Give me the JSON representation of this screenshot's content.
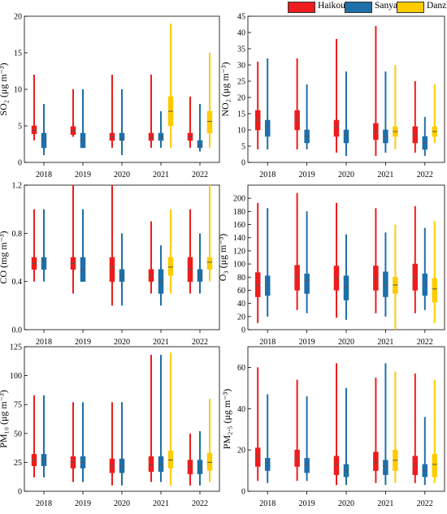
{
  "legend": {
    "items": [
      {
        "label": "Haikou",
        "color": "#ee1c1c"
      },
      {
        "label": "Sanya",
        "color": "#1f6fa8"
      },
      {
        "label": "Danzhou",
        "color": "#ffcc00"
      }
    ]
  },
  "chart_data": [
    {
      "type": "box",
      "ylabel": "SO₂ (μg m⁻³)",
      "ylim": [
        0,
        20
      ],
      "yticks": [
        0,
        5,
        10,
        15,
        20
      ],
      "categories": [
        "2018",
        "2019",
        "2020",
        "2021",
        "2022"
      ],
      "series": [
        {
          "name": "Haikou",
          "boxes": [
            {
              "min": 3,
              "q1": 3.9,
              "median": 4.4,
              "q3": 5,
              "max": 12
            },
            {
              "min": 3.5,
              "q1": 3.8,
              "median": 4.3,
              "q3": 4.9,
              "max": 10
            },
            {
              "min": 2,
              "q1": 3,
              "median": 3.5,
              "q3": 4,
              "max": 12
            },
            {
              "min": 2,
              "q1": 3,
              "median": 3.4,
              "q3": 4,
              "max": 12
            },
            {
              "min": 2,
              "q1": 3,
              "median": 3.5,
              "q3": 4,
              "max": 9
            }
          ]
        },
        {
          "name": "Sanya",
          "boxes": [
            {
              "min": 1,
              "q1": 2,
              "median": 3,
              "q3": 4,
              "max": 8
            },
            {
              "min": 2,
              "q1": 2,
              "median": 3,
              "q3": 4,
              "max": 10
            },
            {
              "min": 1,
              "q1": 3,
              "median": 3.2,
              "q3": 4,
              "max": 10
            },
            {
              "min": 2,
              "q1": 3,
              "median": 3.4,
              "q3": 4,
              "max": 7
            },
            {
              "min": 1.5,
              "q1": 2,
              "median": 2.4,
              "q3": 3,
              "max": 8
            }
          ]
        },
        {
          "name": "Danzhou",
          "boxes": [
            null,
            null,
            null,
            {
              "min": 2,
              "q1": 5,
              "median": 7,
              "q3": 9,
              "max": 19
            },
            {
              "min": 2,
              "q1": 4,
              "median": 5.6,
              "q3": 7,
              "max": 15
            }
          ]
        }
      ]
    },
    {
      "type": "box",
      "ylabel": "NO₂ (μg m⁻³)",
      "ylim": [
        0,
        45
      ],
      "yticks": [
        0,
        5,
        10,
        15,
        20,
        25,
        30,
        35,
        40,
        45
      ],
      "categories": [
        "2018",
        "2019",
        "2020",
        "2021",
        "2022"
      ],
      "series": [
        {
          "name": "Haikou",
          "boxes": [
            {
              "min": 4,
              "q1": 10,
              "median": 13,
              "q3": 16,
              "max": 31
            },
            {
              "min": 4,
              "q1": 10,
              "median": 13,
              "q3": 16,
              "max": 32
            },
            {
              "min": 3,
              "q1": 8,
              "median": 11,
              "q3": 13,
              "max": 38
            },
            {
              "min": 2,
              "q1": 7,
              "median": 9.5,
              "q3": 12,
              "max": 42
            },
            {
              "min": 3,
              "q1": 6,
              "median": 8.5,
              "q3": 11,
              "max": 25
            }
          ]
        },
        {
          "name": "Sanya",
          "boxes": [
            {
              "min": 4,
              "q1": 8,
              "median": 11,
              "q3": 13,
              "max": 32
            },
            {
              "min": 4,
              "q1": 6,
              "median": 8,
              "q3": 10,
              "max": 24
            },
            {
              "min": 2,
              "q1": 6,
              "median": 8.5,
              "q3": 10,
              "max": 28
            },
            {
              "min": 3,
              "q1": 6,
              "median": 8,
              "q3": 10,
              "max": 28
            },
            {
              "min": 2,
              "q1": 4,
              "median": 6,
              "q3": 8,
              "max": 14
            }
          ]
        },
        {
          "name": "Danzhou",
          "boxes": [
            null,
            null,
            null,
            {
              "min": 4,
              "q1": 8,
              "median": 9.5,
              "q3": 11,
              "max": 30
            },
            {
              "min": 6,
              "q1": 8,
              "median": 9.5,
              "q3": 11,
              "max": 24
            }
          ]
        }
      ]
    },
    {
      "type": "box",
      "ylabel": "CO (mg m⁻³)",
      "ylim": [
        0,
        1.2
      ],
      "yticks": [
        0.0,
        0.4,
        0.8,
        1.2
      ],
      "categories": [
        "2018",
        "2019",
        "2020",
        "2021",
        "2022"
      ],
      "series": [
        {
          "name": "Haikou",
          "boxes": [
            {
              "min": 0.4,
              "q1": 0.5,
              "median": 0.55,
              "q3": 0.6,
              "max": 1.0
            },
            {
              "min": 0.3,
              "q1": 0.5,
              "median": 0.55,
              "q3": 0.6,
              "max": 1.2
            },
            {
              "min": 0.2,
              "q1": 0.4,
              "median": 0.52,
              "q3": 0.6,
              "max": 1.2
            },
            {
              "min": 0.3,
              "q1": 0.4,
              "median": 0.45,
              "q3": 0.5,
              "max": 0.9
            },
            {
              "min": 0.3,
              "q1": 0.4,
              "median": 0.5,
              "q3": 0.6,
              "max": 1.0
            }
          ]
        },
        {
          "name": "Sanya",
          "boxes": [
            {
              "min": 0.4,
              "q1": 0.5,
              "median": 0.57,
              "q3": 0.6,
              "max": 1.0
            },
            {
              "min": 0.4,
              "q1": 0.4,
              "median": 0.5,
              "q3": 0.6,
              "max": 1.0
            },
            {
              "min": 0.2,
              "q1": 0.4,
              "median": 0.45,
              "q3": 0.5,
              "max": 0.8
            },
            {
              "min": 0.2,
              "q1": 0.3,
              "median": 0.4,
              "q3": 0.5,
              "max": 0.7
            },
            {
              "min": 0.3,
              "q1": 0.4,
              "median": 0.45,
              "q3": 0.5,
              "max": 0.8
            }
          ]
        },
        {
          "name": "Danzhou",
          "boxes": [
            null,
            null,
            null,
            {
              "min": 0.3,
              "q1": 0.45,
              "median": 0.52,
              "q3": 0.6,
              "max": 1.0
            },
            {
              "min": 0.4,
              "q1": 0.5,
              "median": 0.56,
              "q3": 0.6,
              "max": 1.2
            }
          ]
        }
      ]
    },
    {
      "type": "box",
      "ylabel": "O₃ (μg m⁻³)",
      "ylim": [
        0,
        220
      ],
      "yticks": [
        0,
        20,
        40,
        60,
        80,
        100,
        120,
        140,
        160,
        180,
        200
      ],
      "categories": [
        "2018",
        "2019",
        "2020",
        "2021",
        "2022"
      ],
      "series": [
        {
          "name": "Haikou",
          "boxes": [
            {
              "min": 10,
              "q1": 50,
              "median": 68,
              "q3": 87,
              "max": 193
            },
            {
              "min": 30,
              "q1": 60,
              "median": 80,
              "q3": 98,
              "max": 208
            },
            {
              "min": 18,
              "q1": 60,
              "median": 78,
              "q3": 97,
              "max": 193
            },
            {
              "min": 25,
              "q1": 60,
              "median": 78,
              "q3": 97,
              "max": 185
            },
            {
              "min": 25,
              "q1": 60,
              "median": 80,
              "q3": 100,
              "max": 188
            }
          ]
        },
        {
          "name": "Sanya",
          "boxes": [
            {
              "min": 20,
              "q1": 52,
              "median": 68,
              "q3": 82,
              "max": 185
            },
            {
              "min": 25,
              "q1": 55,
              "median": 75,
              "q3": 85,
              "max": 180
            },
            {
              "min": 15,
              "q1": 45,
              "median": 65,
              "q3": 82,
              "max": 145
            },
            {
              "min": 20,
              "q1": 50,
              "median": 68,
              "q3": 88,
              "max": 148
            },
            {
              "min": 30,
              "q1": 52,
              "median": 68,
              "q3": 85,
              "max": 155
            }
          ]
        },
        {
          "name": "Danzhou",
          "boxes": [
            null,
            null,
            null,
            {
              "min": 0,
              "q1": 55,
              "median": 68,
              "q3": 80,
              "max": 160
            },
            {
              "min": 10,
              "q1": 42,
              "median": 62,
              "q3": 78,
              "max": 165
            }
          ]
        }
      ]
    },
    {
      "type": "box",
      "ylabel": "PM₁₀ (μg m⁻³)",
      "ylim": [
        0,
        125
      ],
      "yticks": [
        0,
        25,
        50,
        75,
        100,
        125
      ],
      "categories": [
        "2018",
        "2019",
        "2020",
        "2021",
        "2022"
      ],
      "series": [
        {
          "name": "Haikou",
          "boxes": [
            {
              "min": 12,
              "q1": 22,
              "median": 27,
              "q3": 32,
              "max": 83
            },
            {
              "min": 8,
              "q1": 20,
              "median": 25,
              "q3": 30,
              "max": 77
            },
            {
              "min": 5,
              "q1": 16,
              "median": 22,
              "q3": 28,
              "max": 77
            },
            {
              "min": 8,
              "q1": 17,
              "median": 23,
              "q3": 30,
              "max": 118
            },
            {
              "min": 5,
              "q1": 15,
              "median": 21,
              "q3": 27,
              "max": 50
            }
          ]
        },
        {
          "name": "Sanya",
          "boxes": [
            {
              "min": 12,
              "q1": 22,
              "median": 27,
              "q3": 32,
              "max": 83
            },
            {
              "min": 8,
              "q1": 20,
              "median": 25,
              "q3": 30,
              "max": 77
            },
            {
              "min": 5,
              "q1": 16,
              "median": 22,
              "q3": 28,
              "max": 77
            },
            {
              "min": 8,
              "q1": 17,
              "median": 23,
              "q3": 30,
              "max": 118
            },
            {
              "min": 5,
              "q1": 15,
              "median": 21,
              "q3": 27,
              "max": 52
            }
          ]
        },
        {
          "name": "Danzhou",
          "boxes": [
            null,
            null,
            null,
            {
              "min": 5,
              "q1": 20,
              "median": 27,
              "q3": 35,
              "max": 120
            },
            {
              "min": 8,
              "q1": 18,
              "median": 25,
              "q3": 33,
              "max": 80
            }
          ]
        }
      ]
    },
    {
      "type": "box",
      "ylabel": "PM₂.₅ (μg m⁻³)",
      "ylim": [
        0,
        70
      ],
      "yticks": [
        0,
        20,
        40,
        60
      ],
      "categories": [
        "2018",
        "2019",
        "2020",
        "2021",
        "2022"
      ],
      "series": [
        {
          "name": "Haikou",
          "boxes": [
            {
              "min": 5,
              "q1": 12,
              "median": 17,
              "q3": 21,
              "max": 60
            },
            {
              "min": 5,
              "q1": 12,
              "median": 16,
              "q3": 20,
              "max": 54
            },
            {
              "min": 3,
              "q1": 8,
              "median": 13,
              "q3": 17,
              "max": 62
            },
            {
              "min": 4,
              "q1": 10,
              "median": 14,
              "q3": 19,
              "max": 55
            },
            {
              "min": 4,
              "q1": 8,
              "median": 13,
              "q3": 17,
              "max": 57
            }
          ]
        },
        {
          "name": "Sanya",
          "boxes": [
            {
              "min": 4,
              "q1": 10,
              "median": 14,
              "q3": 16,
              "max": 47
            },
            {
              "min": 5,
              "q1": 9,
              "median": 13,
              "q3": 16,
              "max": 46
            },
            {
              "min": 3,
              "q1": 7,
              "median": 10,
              "q3": 13,
              "max": 50
            },
            {
              "min": 3,
              "q1": 8,
              "median": 12,
              "q3": 15,
              "max": 62
            },
            {
              "min": 3,
              "q1": 7,
              "median": 10,
              "q3": 13,
              "max": 36
            }
          ]
        },
        {
          "name": "Danzhou",
          "boxes": [
            null,
            null,
            null,
            {
              "min": 4,
              "q1": 10,
              "median": 15,
              "q3": 20,
              "max": 58
            },
            {
              "min": 4,
              "q1": 7,
              "median": 13,
              "q3": 18,
              "max": 54
            }
          ]
        }
      ]
    }
  ]
}
